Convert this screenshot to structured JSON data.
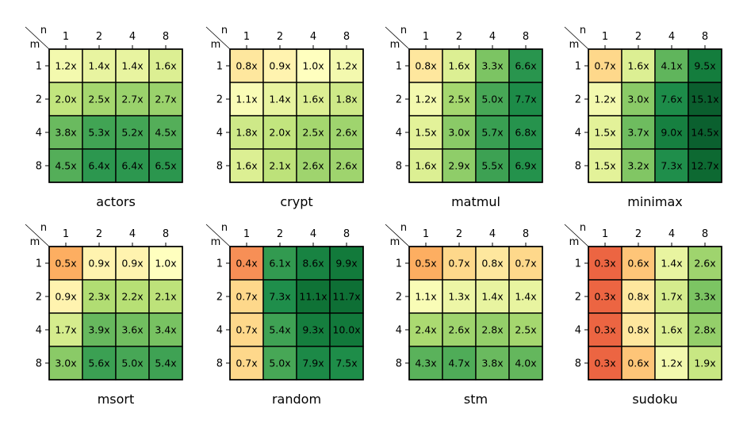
{
  "axes": {
    "row_label": "m",
    "col_label": "n"
  },
  "chart_data": [
    {
      "type": "heatmap",
      "title": "actors",
      "x_categories": [
        "1",
        "2",
        "4",
        "8"
      ],
      "y_categories": [
        "1",
        "2",
        "4",
        "8"
      ],
      "values": [
        [
          1.2,
          1.4,
          1.4,
          1.6
        ],
        [
          2.0,
          2.5,
          2.7,
          2.7
        ],
        [
          3.8,
          5.3,
          5.2,
          4.5
        ],
        [
          4.5,
          6.4,
          6.4,
          6.5
        ]
      ],
      "labels": [
        [
          "1.2x",
          "1.4x",
          "1.4x",
          "1.6x"
        ],
        [
          "2.0x",
          "2.5x",
          "2.7x",
          "2.7x"
        ],
        [
          "3.8x",
          "5.3x",
          "5.2x",
          "4.5x"
        ],
        [
          "4.5x",
          "6.4x",
          "6.4x",
          "6.5x"
        ]
      ]
    },
    {
      "type": "heatmap",
      "title": "crypt",
      "x_categories": [
        "1",
        "2",
        "4",
        "8"
      ],
      "y_categories": [
        "1",
        "2",
        "4",
        "8"
      ],
      "values": [
        [
          0.8,
          0.9,
          1.0,
          1.2
        ],
        [
          1.1,
          1.4,
          1.6,
          1.8
        ],
        [
          1.8,
          2.0,
          2.5,
          2.6
        ],
        [
          1.6,
          2.1,
          2.6,
          2.6
        ]
      ],
      "labels": [
        [
          "0.8x",
          "0.9x",
          "1.0x",
          "1.2x"
        ],
        [
          "1.1x",
          "1.4x",
          "1.6x",
          "1.8x"
        ],
        [
          "1.8x",
          "2.0x",
          "2.5x",
          "2.6x"
        ],
        [
          "1.6x",
          "2.1x",
          "2.6x",
          "2.6x"
        ]
      ]
    },
    {
      "type": "heatmap",
      "title": "matmul",
      "x_categories": [
        "1",
        "2",
        "4",
        "8"
      ],
      "y_categories": [
        "1",
        "2",
        "4",
        "8"
      ],
      "values": [
        [
          0.8,
          1.6,
          3.3,
          6.6
        ],
        [
          1.2,
          2.5,
          5.0,
          7.7
        ],
        [
          1.5,
          3.0,
          5.7,
          6.8
        ],
        [
          1.6,
          2.9,
          5.5,
          6.9
        ]
      ],
      "labels": [
        [
          "0.8x",
          "1.6x",
          "3.3x",
          "6.6x"
        ],
        [
          "1.2x",
          "2.5x",
          "5.0x",
          "7.7x"
        ],
        [
          "1.5x",
          "3.0x",
          "5.7x",
          "6.8x"
        ],
        [
          "1.6x",
          "2.9x",
          "5.5x",
          "6.9x"
        ]
      ]
    },
    {
      "type": "heatmap",
      "title": "minimax",
      "x_categories": [
        "1",
        "2",
        "4",
        "8"
      ],
      "y_categories": [
        "1",
        "2",
        "4",
        "8"
      ],
      "values": [
        [
          0.7,
          1.6,
          4.1,
          9.5
        ],
        [
          1.2,
          3.0,
          7.6,
          15.1
        ],
        [
          1.5,
          3.7,
          9.0,
          14.5
        ],
        [
          1.5,
          3.2,
          7.3,
          12.7
        ]
      ],
      "labels": [
        [
          "0.7x",
          "1.6x",
          "4.1x",
          "9.5x"
        ],
        [
          "1.2x",
          "3.0x",
          "7.6x",
          "15.1x"
        ],
        [
          "1.5x",
          "3.7x",
          "9.0x",
          "14.5x"
        ],
        [
          "1.5x",
          "3.2x",
          "7.3x",
          "12.7x"
        ]
      ]
    },
    {
      "type": "heatmap",
      "title": "msort",
      "x_categories": [
        "1",
        "2",
        "4",
        "8"
      ],
      "y_categories": [
        "1",
        "2",
        "4",
        "8"
      ],
      "values": [
        [
          0.5,
          0.9,
          0.9,
          1.0
        ],
        [
          0.9,
          2.3,
          2.2,
          2.1
        ],
        [
          1.7,
          3.9,
          3.6,
          3.4
        ],
        [
          3.0,
          5.6,
          5.0,
          5.4
        ]
      ],
      "labels": [
        [
          "0.5x",
          "0.9x",
          "0.9x",
          "1.0x"
        ],
        [
          "0.9x",
          "2.3x",
          "2.2x",
          "2.1x"
        ],
        [
          "1.7x",
          "3.9x",
          "3.6x",
          "3.4x"
        ],
        [
          "3.0x",
          "5.6x",
          "5.0x",
          "5.4x"
        ]
      ]
    },
    {
      "type": "heatmap",
      "title": "random",
      "x_categories": [
        "1",
        "2",
        "4",
        "8"
      ],
      "y_categories": [
        "1",
        "2",
        "4",
        "8"
      ],
      "values": [
        [
          0.4,
          6.1,
          8.6,
          9.9
        ],
        [
          0.7,
          7.3,
          11.1,
          11.7
        ],
        [
          0.7,
          5.4,
          9.3,
          10.0
        ],
        [
          0.7,
          5.0,
          7.9,
          7.5
        ]
      ],
      "labels": [
        [
          "0.4x",
          "6.1x",
          "8.6x",
          "9.9x"
        ],
        [
          "0.7x",
          "7.3x",
          "11.1x",
          "11.7x"
        ],
        [
          "0.7x",
          "5.4x",
          "9.3x",
          "10.0x"
        ],
        [
          "0.7x",
          "5.0x",
          "7.9x",
          "7.5x"
        ]
      ]
    },
    {
      "type": "heatmap",
      "title": "stm",
      "x_categories": [
        "1",
        "2",
        "4",
        "8"
      ],
      "y_categories": [
        "1",
        "2",
        "4",
        "8"
      ],
      "values": [
        [
          0.5,
          0.7,
          0.8,
          0.7
        ],
        [
          1.1,
          1.3,
          1.4,
          1.4
        ],
        [
          2.4,
          2.6,
          2.8,
          2.5
        ],
        [
          4.3,
          4.7,
          3.8,
          4.0
        ]
      ],
      "labels": [
        [
          "0.5x",
          "0.7x",
          "0.8x",
          "0.7x"
        ],
        [
          "1.1x",
          "1.3x",
          "1.4x",
          "1.4x"
        ],
        [
          "2.4x",
          "2.6x",
          "2.8x",
          "2.5x"
        ],
        [
          "4.3x",
          "4.7x",
          "3.8x",
          "4.0x"
        ]
      ]
    },
    {
      "type": "heatmap",
      "title": "sudoku",
      "x_categories": [
        "1",
        "2",
        "4",
        "8"
      ],
      "y_categories": [
        "1",
        "2",
        "4",
        "8"
      ],
      "values": [
        [
          0.3,
          0.6,
          1.4,
          2.6
        ],
        [
          0.3,
          0.8,
          1.7,
          3.3
        ],
        [
          0.3,
          0.8,
          1.6,
          2.8
        ],
        [
          0.3,
          0.6,
          1.2,
          1.9
        ]
      ],
      "labels": [
        [
          "0.3x",
          "0.6x",
          "1.4x",
          "2.6x"
        ],
        [
          "0.3x",
          "0.8x",
          "1.7x",
          "3.3x"
        ],
        [
          "0.3x",
          "0.8x",
          "1.6x",
          "2.8x"
        ],
        [
          "0.3x",
          "0.6x",
          "1.2x",
          "1.9x"
        ]
      ]
    }
  ],
  "colors": {
    "below_one": [
      "#e34a33",
      "#f47e50",
      "#fdae61",
      "#fed98c",
      "#ffffbf"
    ],
    "above_one": [
      "#ffffbf",
      "#e4f29a",
      "#b7e075",
      "#7dc463",
      "#4aa957",
      "#1f8f4b",
      "#0f7437",
      "#0a5a2c"
    ]
  }
}
